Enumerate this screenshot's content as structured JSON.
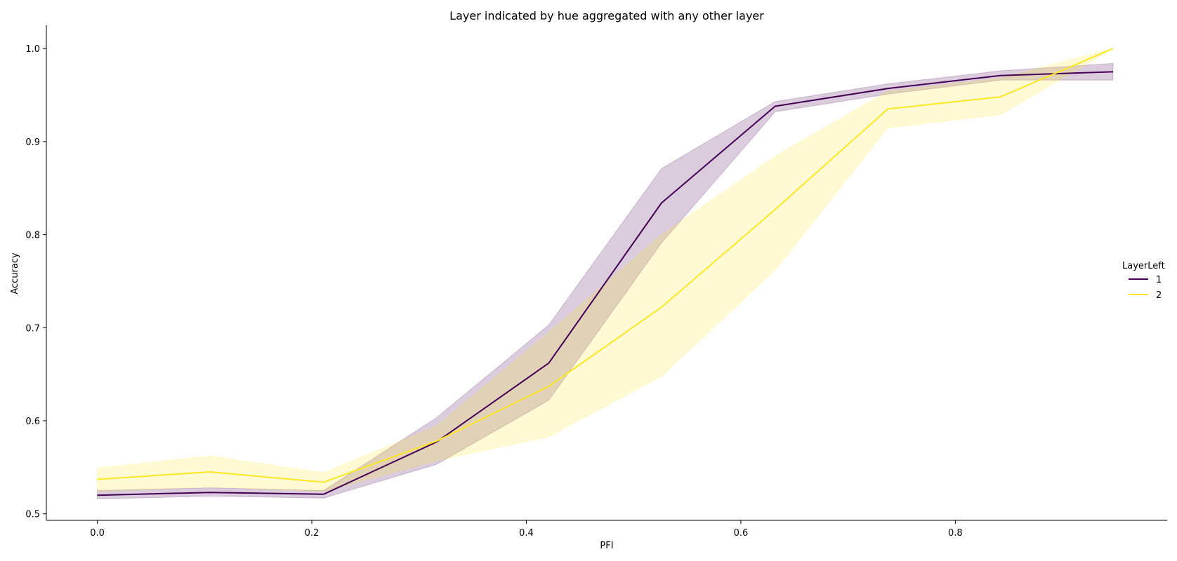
{
  "chart_data": {
    "type": "line",
    "title": "Layer indicated by hue aggregated with any other layer",
    "xlabel": "PFI",
    "ylabel": "Accuracy",
    "xlim": [
      -0.0475,
      0.9975
    ],
    "ylim": [
      0.493,
      1.025
    ],
    "xticks": [
      0.0,
      0.2,
      0.4,
      0.6,
      0.8
    ],
    "xtick_labels": [
      "0.0",
      "0.2",
      "0.4",
      "0.6",
      "0.8"
    ],
    "yticks": [
      0.5,
      0.6,
      0.7,
      0.8,
      0.9,
      1.0
    ],
    "ytick_labels": [
      "0.5",
      "0.6",
      "0.7",
      "0.8",
      "0.9",
      "1.0"
    ],
    "grid": false,
    "legend": {
      "title": "LayerLeft",
      "position": "center-right"
    },
    "x": [
      0.0,
      0.105,
      0.211,
      0.316,
      0.421,
      0.526,
      0.632,
      0.737,
      0.842,
      0.947
    ],
    "series": [
      {
        "name": "1",
        "color": "#440154",
        "values": [
          0.52,
          0.523,
          0.521,
          0.577,
          0.662,
          0.834,
          0.938,
          0.957,
          0.971,
          0.975
        ],
        "ci_low": [
          0.516,
          0.519,
          0.517,
          0.553,
          0.622,
          0.791,
          0.932,
          0.951,
          0.966,
          0.966
        ],
        "ci_high": [
          0.525,
          0.528,
          0.525,
          0.603,
          0.703,
          0.871,
          0.943,
          0.962,
          0.976,
          0.984
        ]
      },
      {
        "name": "2",
        "color": "#fde725",
        "values": [
          0.537,
          0.545,
          0.534,
          0.578,
          0.637,
          0.722,
          0.827,
          0.935,
          0.948,
          1.0
        ],
        "ci_low": [
          0.524,
          0.529,
          0.524,
          0.557,
          0.583,
          0.648,
          0.762,
          0.915,
          0.929,
          1.0
        ],
        "ci_high": [
          0.549,
          0.562,
          0.544,
          0.594,
          0.695,
          0.8,
          0.884,
          0.954,
          0.968,
          1.0
        ]
      }
    ]
  }
}
